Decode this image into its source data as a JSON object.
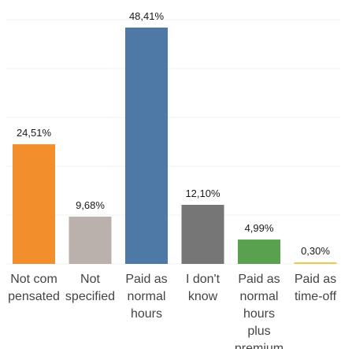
{
  "chart_data": {
    "type": "bar",
    "categories": [
      [
        "Not com",
        "pensated"
      ],
      [
        "Not",
        "specified"
      ],
      [
        "Paid as",
        "normal",
        "hours"
      ],
      [
        "I don't",
        "know"
      ],
      [
        "Paid as",
        "normal",
        "hours",
        "plus",
        "premium"
      ],
      [
        "Paid as",
        "time-off"
      ]
    ],
    "values": [
      24.51,
      9.68,
      48.41,
      12.1,
      4.99,
      0.3
    ],
    "value_labels": [
      "24,51%",
      "9,68%",
      "48,41%",
      "12,10%",
      "4,99%",
      "0,30%"
    ],
    "colors": [
      "#f28e2b",
      "#bab0ac",
      "#4e79a7",
      "#767676",
      "#59a14f",
      "#edc948"
    ],
    "ylim": [
      0,
      50
    ],
    "grid": true,
    "title": "",
    "xlabel": "",
    "ylabel": ""
  }
}
